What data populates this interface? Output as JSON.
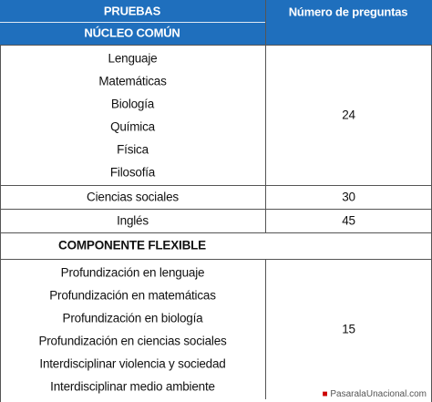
{
  "table": {
    "columns": [
      "PRUEBAS",
      "Número de preguntas"
    ],
    "core_title": "NÚCLEO COMÚN",
    "core_rows": [
      {
        "tests": [
          "Lenguaje",
          "Matemáticas",
          "Biología",
          "Química",
          "Física",
          "Filosofía"
        ],
        "count": 24
      },
      {
        "tests": [
          "Ciencias sociales"
        ],
        "count": 30
      },
      {
        "tests": [
          "Inglés"
        ],
        "count": 45
      }
    ],
    "flex_title": "COMPONENTE FLEXIBLE",
    "flex_rows": [
      {
        "tests": [
          "Profundización en lenguaje",
          "Profundización en matemáticas",
          "Profundización en biología",
          "Profundización en ciencias sociales",
          "Interdisciplinar violencia y sociedad",
          "Interdisciplinar medio ambiente"
        ],
        "count": 15
      }
    ]
  },
  "watermark": "PasaralaUnacional.com"
}
